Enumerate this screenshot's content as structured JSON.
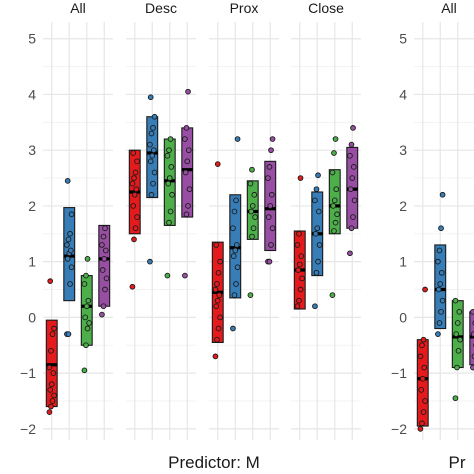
{
  "chart_data": {
    "type": "box",
    "panels": [
      {
        "predictor": "M",
        "xlabel": "Predictor: M",
        "facets": [
          {
            "label": "All",
            "groups": [
              {
                "color": "#e41a1c",
                "q1": -1.6,
                "median": -0.85,
                "q3": -0.05,
                "points": [
                  -1.7,
                  -1.6,
                  -1.5,
                  -1.4,
                  -1.3,
                  -1.2,
                  -1.0,
                  -0.9,
                  -0.6,
                  -0.3,
                  -0.2,
                  0.65
                ]
              },
              {
                "color": "#377eb8",
                "q1": 0.3,
                "median": 1.1,
                "q3": 1.97,
                "points": [
                  -0.3,
                  -0.3,
                  0.6,
                  0.9,
                  1.05,
                  1.15,
                  1.2,
                  1.3,
                  1.4,
                  1.5,
                  1.85,
                  2.45
                ]
              },
              {
                "color": "#4daf4a",
                "q1": -0.5,
                "median": 0.2,
                "q3": 0.75,
                "points": [
                  -0.95,
                  -0.5,
                  -0.2,
                  -0.1,
                  0.0,
                  0.2,
                  0.3,
                  0.6,
                  0.75,
                  1.05
                ]
              },
              {
                "color": "#984ea3",
                "q1": 0.2,
                "median": 1.05,
                "q3": 1.65,
                "points": [
                  0.05,
                  0.2,
                  0.5,
                  0.7,
                  0.85,
                  1.05,
                  1.2,
                  1.3,
                  1.45,
                  1.6
                ]
              }
            ]
          },
          {
            "label": "Desc",
            "groups": [
              {
                "color": "#e41a1c",
                "q1": 1.5,
                "median": 2.25,
                "q3": 3.0,
                "points": [
                  0.55,
                  1.4,
                  1.6,
                  1.8,
                  2.0,
                  2.2,
                  2.3,
                  2.4,
                  2.5,
                  2.6,
                  2.8,
                  2.95
                ]
              },
              {
                "color": "#377eb8",
                "q1": 2.15,
                "median": 2.95,
                "q3": 3.6,
                "points": [
                  1.0,
                  2.2,
                  2.4,
                  2.6,
                  2.8,
                  2.9,
                  3.0,
                  3.1,
                  3.3,
                  3.4,
                  3.6,
                  3.95
                ]
              },
              {
                "color": "#4daf4a",
                "q1": 1.65,
                "median": 2.45,
                "q3": 3.2,
                "points": [
                  0.75,
                  1.7,
                  1.9,
                  2.2,
                  2.4,
                  2.5,
                  2.7,
                  2.9,
                  3.0,
                  3.2
                ]
              },
              {
                "color": "#984ea3",
                "q1": 1.8,
                "median": 2.65,
                "q3": 3.4,
                "points": [
                  0.75,
                  1.85,
                  2.0,
                  2.3,
                  2.6,
                  2.8,
                  3.0,
                  3.2,
                  3.4,
                  4.05
                ]
              }
            ]
          },
          {
            "label": "Prox",
            "groups": [
              {
                "color": "#e41a1c",
                "q1": -0.45,
                "median": 0.45,
                "q3": 1.35,
                "points": [
                  -0.7,
                  -0.4,
                  -0.2,
                  0.0,
                  0.2,
                  0.3,
                  0.4,
                  0.5,
                  0.6,
                  0.8,
                  1.0,
                  1.3,
                  2.75
                ]
              },
              {
                "color": "#377eb8",
                "q1": 0.35,
                "median": 1.25,
                "q3": 2.2,
                "points": [
                  -0.2,
                  0.4,
                  0.6,
                  0.9,
                  1.1,
                  1.2,
                  1.3,
                  1.6,
                  1.9,
                  2.1,
                  3.2
                ]
              },
              {
                "color": "#4daf4a",
                "q1": 1.4,
                "median": 1.9,
                "q3": 2.45,
                "points": [
                  0.4,
                  1.45,
                  1.6,
                  1.8,
                  1.9,
                  2.0,
                  2.2,
                  2.4,
                  2.65
                ]
              },
              {
                "color": "#984ea3",
                "q1": 1.2,
                "median": 1.95,
                "q3": 2.8,
                "points": [
                  1.0,
                  1.0,
                  1.3,
                  1.6,
                  1.8,
                  2.0,
                  2.2,
                  2.5,
                  2.7,
                  3.0,
                  3.2
                ]
              }
            ]
          },
          {
            "label": "Close",
            "groups": [
              {
                "color": "#e41a1c",
                "q1": 0.15,
                "median": 0.85,
                "q3": 1.55,
                "points": [
                  0.2,
                  0.3,
                  0.5,
                  0.7,
                  0.85,
                  0.95,
                  1.1,
                  1.3,
                  1.5,
                  2.5
                ]
              },
              {
                "color": "#377eb8",
                "q1": 0.75,
                "median": 1.5,
                "q3": 2.25,
                "points": [
                  0.2,
                  0.8,
                  1.0,
                  1.3,
                  1.5,
                  1.6,
                  1.9,
                  2.1,
                  2.3,
                  2.55
                ]
              },
              {
                "color": "#4daf4a",
                "q1": 1.5,
                "median": 2.0,
                "q3": 2.65,
                "points": [
                  0.4,
                  1.55,
                  1.7,
                  1.85,
                  2.0,
                  2.1,
                  2.3,
                  2.6,
                  2.95,
                  3.2
                ]
              },
              {
                "color": "#984ea3",
                "q1": 1.6,
                "median": 2.3,
                "q3": 3.05,
                "points": [
                  1.15,
                  1.6,
                  1.8,
                  2.1,
                  2.3,
                  2.5,
                  2.7,
                  2.9,
                  3.1,
                  3.4
                ]
              }
            ]
          }
        ]
      },
      {
        "predictor": "",
        "xlabel": "Pr",
        "facets": [
          {
            "label": "All",
            "groups": [
              {
                "color": "#e41a1c",
                "q1": -1.95,
                "median": -1.1,
                "q3": -0.4,
                "points": [
                  -2.0,
                  -1.9,
                  -1.7,
                  -1.5,
                  -1.3,
                  -1.1,
                  -0.9,
                  -0.7,
                  -0.5,
                  -0.4,
                  0.5
                ]
              },
              {
                "color": "#377eb8",
                "q1": -0.2,
                "median": 0.5,
                "q3": 1.3,
                "points": [
                  -0.3,
                  -0.1,
                  0.1,
                  0.3,
                  0.5,
                  0.6,
                  0.8,
                  1.0,
                  1.2,
                  1.6,
                  2.2
                ]
              },
              {
                "color": "#4daf4a",
                "q1": -0.9,
                "median": -0.35,
                "q3": 0.3,
                "points": [
                  -1.45,
                  -0.9,
                  -0.6,
                  -0.4,
                  -0.3,
                  -0.1,
                  0.1,
                  0.3
                ]
              },
              {
                "color": "#984ea3",
                "q1": -0.85,
                "median": -0.35,
                "q3": 0.1,
                "points": [
                  -0.9,
                  -0.7,
                  -0.5,
                  -0.4,
                  -0.3,
                  -0.1,
                  0.0,
                  0.1
                ]
              }
            ]
          }
        ]
      }
    ],
    "ylim": [
      -2.2,
      5.3
    ],
    "yticks": [
      -2,
      -1,
      0,
      1,
      2,
      3,
      4,
      5
    ],
    "grid": true,
    "legend": "none"
  }
}
